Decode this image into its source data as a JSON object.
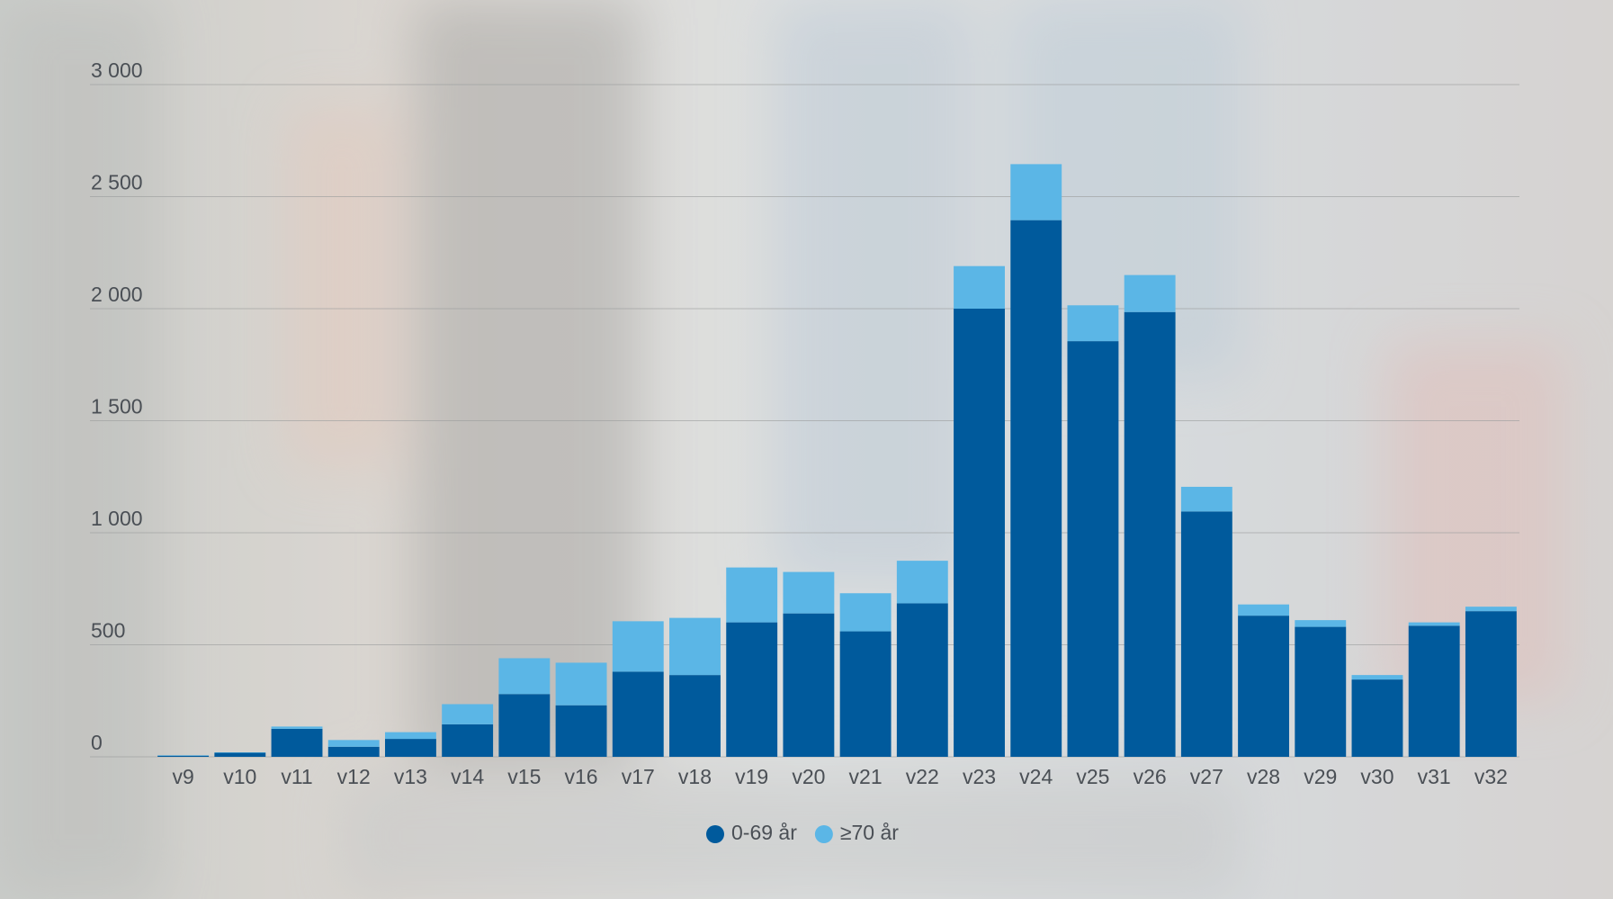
{
  "chart_data": {
    "type": "stacked_bar",
    "categories": [
      "v9",
      "v10",
      "v11",
      "v12",
      "v13",
      "v14",
      "v15",
      "v16",
      "v17",
      "v18",
      "v19",
      "v20",
      "v21",
      "v22",
      "v23",
      "v24",
      "v25",
      "v26",
      "v27",
      "v28",
      "v29",
      "v30",
      "v31",
      "v32"
    ],
    "series": [
      {
        "name": "0-69 år",
        "color": "#005a9c",
        "values": [
          5,
          18,
          125,
          45,
          80,
          145,
          280,
          230,
          380,
          365,
          600,
          640,
          560,
          685,
          2000,
          2395,
          1855,
          1985,
          1095,
          630,
          580,
          345,
          585,
          650
        ]
      },
      {
        "name": "≥70 år",
        "color": "#5bb6e6",
        "values": [
          2,
          2,
          10,
          30,
          30,
          90,
          160,
          190,
          225,
          255,
          245,
          185,
          170,
          190,
          190,
          250,
          160,
          165,
          110,
          50,
          30,
          20,
          15,
          20
        ]
      }
    ],
    "ylim": [
      0,
      3000
    ],
    "yticks": [
      0,
      500,
      {
        "value": 1000,
        "label": "1 000"
      },
      {
        "value": 1500,
        "label": "1 500"
      },
      {
        "value": 2000,
        "label": "2 000"
      },
      {
        "value": 2500,
        "label": "2 500"
      },
      {
        "value": 3000,
        "label": "3 000"
      }
    ],
    "grid": true,
    "legend": "bottom"
  }
}
